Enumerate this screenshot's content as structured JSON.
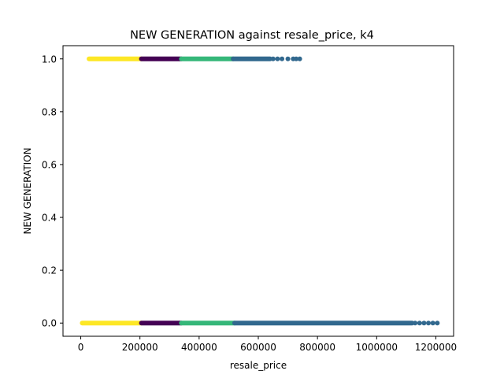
{
  "chart_data": {
    "type": "scatter",
    "title": "NEW GENERATION against resale_price, k4",
    "xlabel": "resale_price",
    "ylabel": "NEW GENERATION",
    "xlim": [
      -60000,
      1260000
    ],
    "ylim": [
      -0.05,
      1.05
    ],
    "xticks": [
      0,
      200000,
      400000,
      600000,
      800000,
      1000000,
      1200000
    ],
    "xtick_labels": [
      "0",
      "200000",
      "400000",
      "600000",
      "800000",
      "1000000",
      "1200000"
    ],
    "yticks": [
      0.0,
      0.2,
      0.4,
      0.6,
      0.8,
      1.0
    ],
    "ytick_labels": [
      "0.0",
      "0.2",
      "0.4",
      "0.6",
      "0.8",
      "1.0"
    ],
    "grid": false,
    "legend": "none",
    "cluster_colors": [
      "#fde725",
      "#440154",
      "#35b779",
      "#31688e"
    ],
    "segments": [
      {
        "y": 0,
        "x_min": 5000,
        "x_max": 205000,
        "color": "#fde725"
      },
      {
        "y": 0,
        "x_min": 205000,
        "x_max": 340000,
        "color": "#440154"
      },
      {
        "y": 0,
        "x_min": 340000,
        "x_max": 520000,
        "color": "#35b779"
      },
      {
        "y": 0,
        "x_min": 520000,
        "x_max": 1120000,
        "color": "#31688e"
      },
      {
        "y": 1,
        "x_min": 28000,
        "x_max": 205000,
        "color": "#fde725"
      },
      {
        "y": 1,
        "x_min": 205000,
        "x_max": 340000,
        "color": "#440154"
      },
      {
        "y": 1,
        "x_min": 340000,
        "x_max": 515000,
        "color": "#35b779"
      },
      {
        "y": 1,
        "x_min": 515000,
        "x_max": 640000,
        "color": "#31688e"
      }
    ],
    "outliers": [
      {
        "x": 1130000,
        "y": 0,
        "color": "#31688e"
      },
      {
        "x": 1145000,
        "y": 0,
        "color": "#31688e"
      },
      {
        "x": 1160000,
        "y": 0,
        "color": "#31688e"
      },
      {
        "x": 1175000,
        "y": 0,
        "color": "#31688e"
      },
      {
        "x": 1190000,
        "y": 0,
        "color": "#31688e"
      },
      {
        "x": 1205000,
        "y": 0,
        "color": "#31688e"
      },
      {
        "x": 650000,
        "y": 1,
        "color": "#31688e"
      },
      {
        "x": 665000,
        "y": 1,
        "color": "#31688e"
      },
      {
        "x": 680000,
        "y": 1,
        "color": "#31688e"
      },
      {
        "x": 700000,
        "y": 1,
        "color": "#31688e"
      },
      {
        "x": 718000,
        "y": 1,
        "color": "#31688e"
      },
      {
        "x": 728000,
        "y": 1,
        "color": "#31688e"
      },
      {
        "x": 740000,
        "y": 1,
        "color": "#31688e"
      }
    ]
  }
}
